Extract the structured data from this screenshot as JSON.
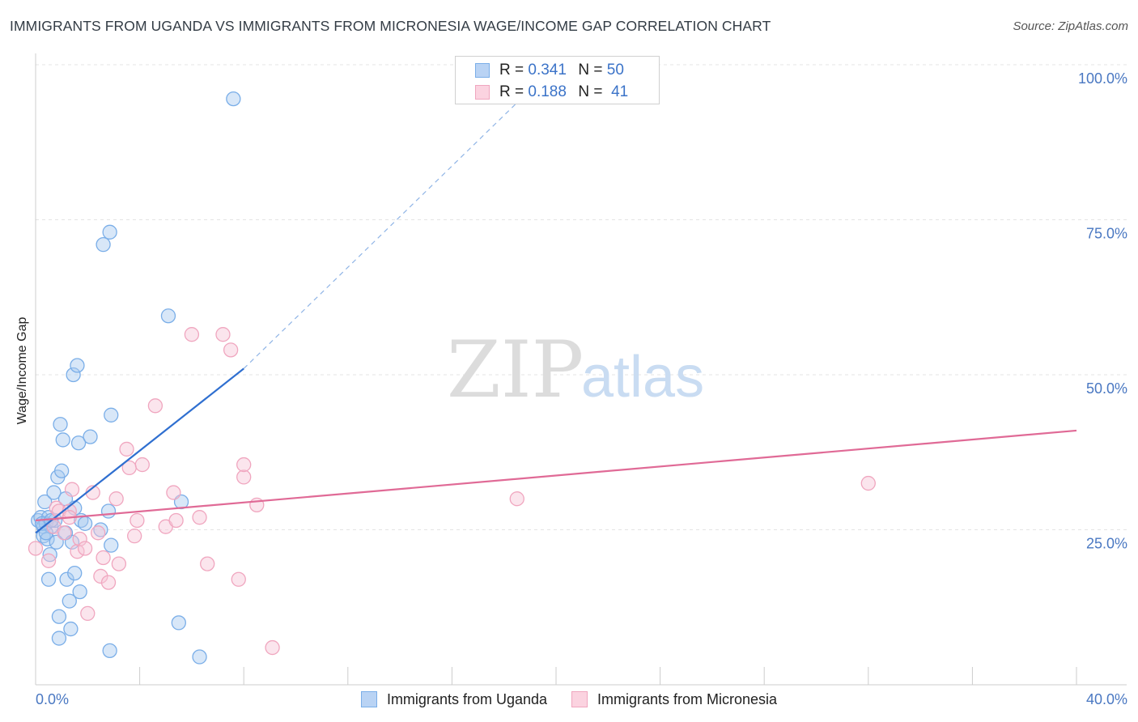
{
  "chart_data": {
    "type": "scatter",
    "title": "IMMIGRANTS FROM UGANDA VS IMMIGRANTS FROM MICRONESIA WAGE/INCOME GAP CORRELATION CHART",
    "source": "Source: ZipAtlas.com",
    "ylabel": "Wage/Income Gap",
    "xlabel": "",
    "xlim": [
      0,
      40
    ],
    "ylim": [
      0,
      105
    ],
    "y_ticks": [
      {
        "value": 25,
        "label": "25.0%"
      },
      {
        "value": 50,
        "label": "50.0%"
      },
      {
        "value": 75,
        "label": "75.0%"
      },
      {
        "value": 100,
        "label": "100.0%"
      }
    ],
    "x_tick_labels": {
      "left": "0.0%",
      "right": "40.0%"
    },
    "grid": true,
    "watermark": {
      "zip": "ZIP",
      "atlas": "atlas"
    },
    "legend": [
      {
        "r_label": "R =",
        "r_value": "0.341",
        "n_label": "N =",
        "n_value": "50"
      },
      {
        "r_label": "R =",
        "r_value": "0.188",
        "n_label": "N =",
        "n_value": "41"
      }
    ],
    "series": [
      {
        "name": "Immigrants from Uganda",
        "color": "#7aaee8",
        "fill": "#a9c9f0",
        "trend_color": "#2f6fd0",
        "trend": {
          "x0": 0,
          "y0": 24.5,
          "x1": 8.0,
          "y1": 51.0,
          "dash_x1": 20.0,
          "dash_y1": 100.0
        },
        "points": [
          [
            0.1,
            26.5
          ],
          [
            0.2,
            27.0
          ],
          [
            0.3,
            25.5
          ],
          [
            0.3,
            24.0
          ],
          [
            0.35,
            29.5
          ],
          [
            0.4,
            26.0
          ],
          [
            0.45,
            23.5
          ],
          [
            0.5,
            27.0
          ],
          [
            0.5,
            17.0
          ],
          [
            0.55,
            21.0
          ],
          [
            0.6,
            25.5
          ],
          [
            0.7,
            31.0
          ],
          [
            0.75,
            26.5
          ],
          [
            0.8,
            23.0
          ],
          [
            0.85,
            33.5
          ],
          [
            0.9,
            11.0
          ],
          [
            0.9,
            7.5
          ],
          [
            0.95,
            42.0
          ],
          [
            1.0,
            34.5
          ],
          [
            1.05,
            39.5
          ],
          [
            1.15,
            30.0
          ],
          [
            1.15,
            24.5
          ],
          [
            1.2,
            17.0
          ],
          [
            1.3,
            13.5
          ],
          [
            1.35,
            9.0
          ],
          [
            1.4,
            23.0
          ],
          [
            1.45,
            50.0
          ],
          [
            1.5,
            18.0
          ],
          [
            1.5,
            28.5
          ],
          [
            1.6,
            51.5
          ],
          [
            1.65,
            39.0
          ],
          [
            1.7,
            15.0
          ],
          [
            1.75,
            26.5
          ],
          [
            1.9,
            26.0
          ],
          [
            2.1,
            40.0
          ],
          [
            2.5,
            25.0
          ],
          [
            2.6,
            71.0
          ],
          [
            2.8,
            28.0
          ],
          [
            2.85,
            73.0
          ],
          [
            2.85,
            5.5
          ],
          [
            2.9,
            22.5
          ],
          [
            2.9,
            43.5
          ],
          [
            5.1,
            59.5
          ],
          [
            5.5,
            10.0
          ],
          [
            5.6,
            29.5
          ],
          [
            6.3,
            4.5
          ],
          [
            7.6,
            94.5
          ],
          [
            0.25,
            26.0
          ],
          [
            0.6,
            26.5
          ],
          [
            0.4,
            24.5
          ]
        ]
      },
      {
        "name": "Immigrants from Micronesia",
        "color": "#f0a6bf",
        "fill": "#f7c6d6",
        "trend_color": "#e06a96",
        "trend": {
          "x0": 0,
          "y0": 26.5,
          "x1": 40.0,
          "y1": 41.0
        },
        "points": [
          [
            0.0,
            22.0
          ],
          [
            0.5,
            20.0
          ],
          [
            0.7,
            25.5
          ],
          [
            0.8,
            28.5
          ],
          [
            0.9,
            28.0
          ],
          [
            1.1,
            24.5
          ],
          [
            1.3,
            28.0
          ],
          [
            1.4,
            31.5
          ],
          [
            1.6,
            21.5
          ],
          [
            1.7,
            23.5
          ],
          [
            1.9,
            22.0
          ],
          [
            2.0,
            11.5
          ],
          [
            2.2,
            31.0
          ],
          [
            2.4,
            24.5
          ],
          [
            2.5,
            17.5
          ],
          [
            2.6,
            20.5
          ],
          [
            2.8,
            16.5
          ],
          [
            3.1,
            30.0
          ],
          [
            3.2,
            19.5
          ],
          [
            3.5,
            38.0
          ],
          [
            3.6,
            35.0
          ],
          [
            3.8,
            24.0
          ],
          [
            3.9,
            26.5
          ],
          [
            4.1,
            35.5
          ],
          [
            4.6,
            45.0
          ],
          [
            5.0,
            25.5
          ],
          [
            5.3,
            31.0
          ],
          [
            5.4,
            26.5
          ],
          [
            6.0,
            56.5
          ],
          [
            6.3,
            27.0
          ],
          [
            6.6,
            19.5
          ],
          [
            7.2,
            56.5
          ],
          [
            7.5,
            54.0
          ],
          [
            7.8,
            17.0
          ],
          [
            8.0,
            33.5
          ],
          [
            8.0,
            35.5
          ],
          [
            8.5,
            29.0
          ],
          [
            9.1,
            6.0
          ],
          [
            18.5,
            30.0
          ],
          [
            32.0,
            32.5
          ],
          [
            1.3,
            27.0
          ]
        ]
      }
    ]
  }
}
